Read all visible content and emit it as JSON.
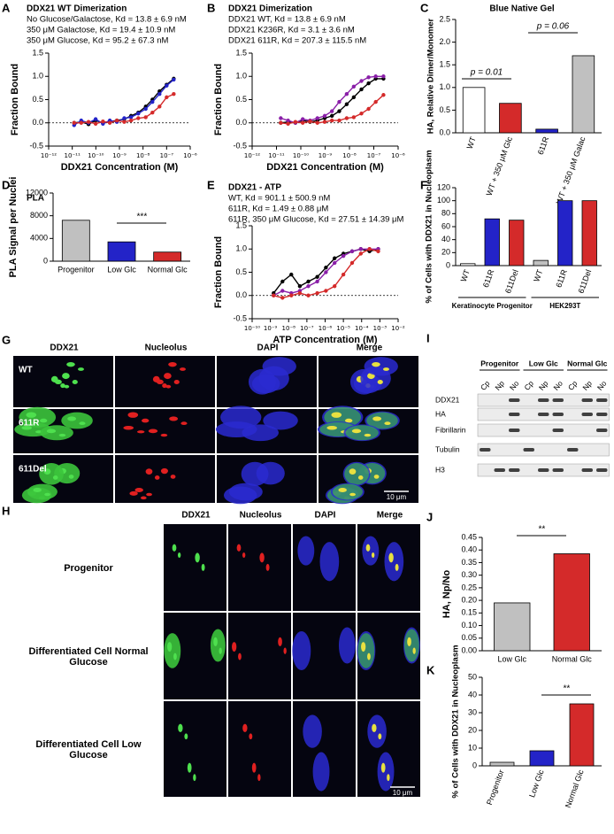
{
  "chart_data": [
    {
      "type": "scatter",
      "label": "A",
      "title": "DDX21 WT Dimerization",
      "x_label": "DDX21 Concentration (M)",
      "y_label": "Fraction Bound",
      "x_scale": "log",
      "xlim": [
        1e-12,
        1e-06
      ],
      "xticks": [
        {
          "value": 1e-12,
          "label": "10⁻¹²"
        },
        {
          "value": 1e-11,
          "label": "10⁻¹¹"
        },
        {
          "value": 1e-10,
          "label": "10⁻¹⁰"
        },
        {
          "value": 1e-09,
          "label": "10⁻⁹"
        },
        {
          "value": 1e-08,
          "label": "10⁻⁸"
        },
        {
          "value": 1e-07,
          "label": "10⁻⁷"
        },
        {
          "value": 1e-06,
          "label": "10⁻⁶"
        }
      ],
      "ylim": [
        -0.5,
        1.5
      ],
      "yticks": [
        -0.5,
        {
          "value": 0,
          "label": "0.0"
        },
        0.5,
        {
          "value": 1,
          "label": "1.0"
        },
        1.5
      ],
      "x": [
        1.2e-11,
        2.4e-11,
        4.9e-11,
        9.8e-11,
        2e-10,
        3.9e-10,
        7.8e-10,
        1.6e-09,
        3.1e-09,
        6.3e-09,
        1.3e-08,
        2.5e-08,
        5e-08,
        1e-07,
        2e-07
      ],
      "series": [
        {
          "name": "No Glucose/Galactose, Kd = 13.8 ± 6.9 nM",
          "color": "#000000",
          "values": [
            0.0,
            0.02,
            -0.03,
            0.05,
            0.0,
            0.03,
            0.05,
            0.08,
            0.15,
            0.22,
            0.35,
            0.5,
            0.68,
            0.82,
            0.95
          ]
        },
        {
          "name": "350 μM Galactose, Kd = 19.4 ± 10.9 nM",
          "color": "#2323c8",
          "values": [
            -0.05,
            0.05,
            0.0,
            0.08,
            -0.02,
            0.05,
            0.02,
            0.1,
            0.12,
            0.2,
            0.3,
            0.45,
            0.62,
            0.8,
            0.93
          ]
        },
        {
          "name": "350 μM Glucose, Kd = 95.2 ± 67.3 nM",
          "color": "#d42a2a",
          "values": [
            0.0,
            0.0,
            0.02,
            -0.02,
            0.03,
            0.0,
            0.05,
            0.02,
            0.05,
            0.1,
            0.12,
            0.22,
            0.35,
            0.55,
            0.62
          ]
        }
      ]
    },
    {
      "type": "scatter",
      "label": "B",
      "title": "DDX21 Dimerization",
      "x_label": "DDX21 Concentration (M)",
      "y_label": "Fraction Bound",
      "x_scale": "log",
      "xlim": [
        1e-12,
        1e-06
      ],
      "xticks": [
        {
          "value": 1e-12,
          "label": "10⁻¹²"
        },
        {
          "value": 1e-11,
          "label": "10⁻¹¹"
        },
        {
          "value": 1e-10,
          "label": "10⁻¹⁰"
        },
        {
          "value": 1e-09,
          "label": "10⁻⁹"
        },
        {
          "value": 1e-08,
          "label": "10⁻⁸"
        },
        {
          "value": 1e-07,
          "label": "10⁻⁷"
        },
        {
          "value": 1e-06,
          "label": "10⁻⁶"
        }
      ],
      "ylim": [
        -0.5,
        1.5
      ],
      "yticks": [
        -0.5,
        {
          "value": 0,
          "label": "0.0"
        },
        0.5,
        {
          "value": 1,
          "label": "1.0"
        },
        1.5
      ],
      "x": [
        1.5e-11,
        3e-11,
        6e-11,
        1.2e-10,
        2.4e-10,
        4.8e-10,
        9.6e-10,
        1.9e-09,
        3.8e-09,
        7.7e-09,
        1.5e-08,
        3.1e-08,
        6.1e-08,
        1.2e-07,
        2.5e-07
      ],
      "series": [
        {
          "name": "DDX21 WT, Kd = 13.8 ± 6.9 nM",
          "color": "#000000",
          "values": [
            0.0,
            0.02,
            0.0,
            0.05,
            0.02,
            0.05,
            0.1,
            0.15,
            0.25,
            0.4,
            0.55,
            0.72,
            0.85,
            0.95,
            0.95
          ]
        },
        {
          "name": "DDX21 K236R, Kd = 3.1 ± 3.6 nM",
          "color": "#8a1fa8",
          "values": [
            0.1,
            0.05,
            0.0,
            0.08,
            0.05,
            0.1,
            0.15,
            0.25,
            0.45,
            0.62,
            0.78,
            0.9,
            0.98,
            1.0,
            1.0
          ]
        },
        {
          "name": "DDX21 611R, Kd = 207.3 ± 115.5 nM",
          "color": "#d42a2a",
          "values": [
            0.0,
            -0.02,
            0.02,
            0.0,
            0.03,
            0.0,
            0.02,
            0.05,
            0.05,
            0.1,
            0.12,
            0.2,
            0.3,
            0.45,
            0.6
          ]
        }
      ]
    },
    {
      "type": "bar",
      "label": "C",
      "title": "Blue Native Gel",
      "y_label": "HA, Relative Dimer/Monomer",
      "categories": [
        "WT",
        "WT + 350 μM Glc",
        "611R",
        "WT + 350 μM Galac"
      ],
      "values": [
        1.0,
        0.65,
        0.08,
        1.7
      ],
      "colors": [
        "#ffffff",
        "#d42a2a",
        "#2323c8",
        "#c0c0c0"
      ],
      "ylim": [
        0,
        2.5
      ],
      "yticks": [
        {
          "value": 0,
          "label": "0.0"
        },
        0.5,
        {
          "value": 1,
          "label": "1.0"
        },
        1.5,
        {
          "value": 2,
          "label": "2.0"
        },
        2.5
      ],
      "annotations": [
        "p = 0.01",
        "p = 0.06"
      ]
    },
    {
      "type": "bar",
      "label": "D",
      "title": "PLA",
      "y_label": "PLA Signal per Nuclei",
      "categories": [
        "Progenitor",
        "Low Glc",
        "Normal Glc"
      ],
      "values": [
        7200,
        3400,
        1600
      ],
      "colors": [
        "#c0c0c0",
        "#2323c8",
        "#d42a2a"
      ],
      "ylim": [
        0,
        12000
      ],
      "yticks": [
        0,
        4000,
        8000,
        12000
      ],
      "annotations": [
        "***"
      ]
    },
    {
      "type": "scatter",
      "label": "E",
      "title": "DDX21 - ATP",
      "x_label": "ATP Concentration (M)",
      "y_label": "Fraction Bound",
      "x_scale": "log",
      "xlim": [
        1e-10,
        0.01
      ],
      "xticks": [
        {
          "value": 1e-10,
          "label": "10⁻¹⁰"
        },
        {
          "value": 1e-09,
          "label": "10⁻⁹"
        },
        {
          "value": 1e-08,
          "label": "10⁻⁸"
        },
        {
          "value": 1e-07,
          "label": "10⁻⁷"
        },
        {
          "value": 1e-06,
          "label": "10⁻⁶"
        },
        {
          "value": 1e-05,
          "label": "10⁻⁵"
        },
        {
          "value": 0.0001,
          "label": "10⁻⁴"
        },
        {
          "value": 0.001,
          "label": "10⁻³"
        },
        {
          "value": 0.01,
          "label": "10⁻²"
        }
      ],
      "ylim": [
        -0.5,
        1.5
      ],
      "yticks": [
        -0.5,
        {
          "value": 0,
          "label": "0.0"
        },
        0.5,
        {
          "value": 1,
          "label": "1.0"
        },
        1.5
      ],
      "x": [
        1.5e-09,
        4.6e-09,
        1.4e-08,
        4.1e-08,
        1.2e-07,
        3.7e-07,
        1.1e-06,
        3.3e-06,
        1e-05,
        3e-05,
        9e-05,
        0.00027,
        0.00081
      ],
      "series": [
        {
          "name": "WT, Kd = 901.1 ± 500.9 nM",
          "color": "#000000",
          "values": [
            0.05,
            0.3,
            0.45,
            0.2,
            0.3,
            0.4,
            0.6,
            0.8,
            0.9,
            0.95,
            1.0,
            0.95,
            1.0
          ]
        },
        {
          "name": "611R, Kd = 1.49 ± 0.88 μM",
          "color": "#8a1fa8",
          "values": [
            0.0,
            0.1,
            0.05,
            0.1,
            0.2,
            0.3,
            0.5,
            0.7,
            0.85,
            0.95,
            1.0,
            1.0,
            1.0
          ]
        },
        {
          "name": "611R, 350 μM Glucose, Kd = 27.51 ± 14.39 μM",
          "color": "#d42a2a",
          "values": [
            0.0,
            -0.05,
            0.0,
            0.05,
            0.0,
            0.05,
            0.1,
            0.2,
            0.45,
            0.7,
            0.9,
            1.0,
            0.95
          ]
        }
      ]
    },
    {
      "type": "bar",
      "label": "F",
      "y_label": "% of Cells with DDX21 in Nucleoplasm",
      "categories": [
        "WT",
        "611R",
        "611Del",
        "WT",
        "611R",
        "611Del"
      ],
      "values": [
        3,
        72,
        70,
        8,
        100,
        100
      ],
      "colors": [
        "#ffffff",
        "#2323c8",
        "#d42a2a",
        "#c0c0c0",
        "#2323c8",
        "#d42a2a"
      ],
      "ylim": [
        0,
        120
      ],
      "yticks": [
        0,
        20,
        40,
        60,
        80,
        100,
        120
      ],
      "groups": [
        "Keratinocyte Progenitor",
        "HEK293T"
      ]
    },
    {
      "type": "bar",
      "label": "J",
      "y_label": "HA, Np/No",
      "categories": [
        "Low Glc",
        "Normal Glc"
      ],
      "values": [
        0.19,
        0.385
      ],
      "colors": [
        "#c0c0c0",
        "#d42a2a"
      ],
      "ylim": [
        0,
        0.45
      ],
      "yticks": [
        {
          "value": 0,
          "label": "0.00"
        },
        0.05,
        {
          "value": 0.1,
          "label": "0.10"
        },
        0.15,
        {
          "value": 0.2,
          "label": "0.20"
        },
        0.25,
        {
          "value": 0.3,
          "label": "0.30"
        },
        0.35,
        {
          "value": 0.4,
          "label": "0.40"
        },
        0.45
      ],
      "annotations": [
        "**"
      ]
    },
    {
      "type": "bar",
      "label": "K",
      "y_label": "% of Cells with DDX21 in Nucleoplasm",
      "categories": [
        "Progenitor",
        "Low Glc",
        "Normal Glc"
      ],
      "values": [
        2,
        8.5,
        35
      ],
      "colors": [
        "#c0c0c0",
        "#2323c8",
        "#d42a2a"
      ],
      "ylim": [
        0,
        50
      ],
      "yticks": [
        0,
        10,
        20,
        30,
        40,
        50
      ],
      "annotations": [
        "**"
      ]
    }
  ],
  "microscopy": [
    {
      "label": "G",
      "columns": [
        "DDX21",
        "Nucleolus",
        "DAPI",
        "Merge"
      ],
      "rows": [
        "WT",
        "611R",
        "611Del"
      ],
      "scale_bar": "10 μm"
    },
    {
      "label": "H",
      "columns": [
        "DDX21",
        "Nucleolus",
        "DAPI",
        "Merge"
      ],
      "rows": [
        "Progenitor",
        "Differentiated Cell Normal Glucose",
        "Differentiated Cell Low Glucose"
      ],
      "scale_bar": "10 μm"
    }
  ],
  "blot": {
    "label": "I",
    "groups": [
      {
        "name": "Progenitor",
        "lanes": [
          "Cp",
          "Np",
          "No"
        ]
      },
      {
        "name": "Low Glc",
        "lanes": [
          "Cp",
          "Np",
          "No"
        ]
      },
      {
        "name": "Normal Glc",
        "lanes": [
          "Cp",
          "Np",
          "No"
        ]
      }
    ],
    "rows": [
      "DDX21",
      "HA",
      "Fibrillarin",
      "Tubulin",
      "H3"
    ]
  }
}
